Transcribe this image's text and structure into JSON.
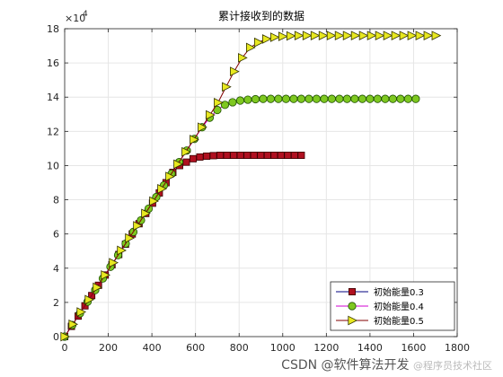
{
  "chart_data": {
    "type": "line",
    "title": "累计接收到的数据",
    "xlabel": "",
    "ylabel": "",
    "y_exponent_label": "×10",
    "y_exponent_power": "4",
    "xlim": [
      0,
      1800
    ],
    "ylim": [
      0,
      18
    ],
    "xticks": [
      0,
      200,
      400,
      600,
      800,
      1000,
      1200,
      1400,
      1600,
      1800
    ],
    "yticks": [
      0,
      2,
      4,
      6,
      8,
      10,
      12,
      14,
      16,
      18
    ],
    "grid": true,
    "legend_position": "bottom-right",
    "series": [
      {
        "name": "初始能量0.3",
        "color": "#000080",
        "marker": "square",
        "marker_fill": "#b01020",
        "x": [
          0,
          31,
          62,
          93,
          124,
          155,
          186,
          217,
          248,
          279,
          310,
          341,
          372,
          403,
          434,
          465,
          496,
          527,
          558,
          589,
          620,
          651,
          682,
          713,
          744,
          775,
          806,
          837,
          868,
          899,
          930,
          961,
          992,
          1023,
          1054,
          1085
        ],
        "y": [
          0,
          0.6,
          1.2,
          1.8,
          2.4,
          3.0,
          3.6,
          4.2,
          4.8,
          5.4,
          6.0,
          6.6,
          7.2,
          7.8,
          8.4,
          9.0,
          9.6,
          10.0,
          10.2,
          10.4,
          10.5,
          10.55,
          10.58,
          10.6,
          10.6,
          10.6,
          10.6,
          10.6,
          10.6,
          10.6,
          10.6,
          10.6,
          10.6,
          10.6,
          10.6,
          10.6
        ]
      },
      {
        "name": "初始能量0.4",
        "color": "#d000d0",
        "marker": "circle",
        "marker_fill": "#7ec820",
        "x": [
          0,
          35,
          70,
          105,
          140,
          175,
          210,
          245,
          280,
          315,
          350,
          385,
          420,
          455,
          490,
          525,
          560,
          595,
          630,
          665,
          700,
          735,
          770,
          805,
          840,
          875,
          910,
          945,
          980,
          1015,
          1050,
          1085,
          1120,
          1155,
          1190,
          1225,
          1260,
          1295,
          1330,
          1365,
          1400,
          1435,
          1470,
          1505,
          1540,
          1575,
          1610
        ],
        "y": [
          0,
          0.68,
          1.36,
          2.04,
          2.72,
          3.4,
          4.08,
          4.76,
          5.44,
          6.12,
          6.8,
          7.48,
          8.16,
          8.84,
          9.52,
          10.2,
          10.88,
          11.56,
          12.24,
          12.8,
          13.25,
          13.55,
          13.7,
          13.8,
          13.85,
          13.88,
          13.9,
          13.9,
          13.9,
          13.9,
          13.9,
          13.9,
          13.9,
          13.9,
          13.9,
          13.9,
          13.9,
          13.9,
          13.9,
          13.9,
          13.9,
          13.9,
          13.9,
          13.9,
          13.9,
          13.9,
          13.9
        ]
      },
      {
        "name": "初始能量0.5",
        "color": "#800000",
        "marker": "triangle-right",
        "marker_fill": "#e8e820",
        "x": [
          0,
          37,
          74,
          111,
          148,
          185,
          222,
          259,
          296,
          333,
          370,
          407,
          444,
          481,
          518,
          555,
          592,
          629,
          666,
          703,
          740,
          777,
          814,
          851,
          888,
          925,
          962,
          999,
          1036,
          1073,
          1110,
          1147,
          1184,
          1221,
          1258,
          1295,
          1332,
          1369,
          1406,
          1443,
          1480,
          1517,
          1554,
          1591,
          1628,
          1665,
          1702
        ],
        "y": [
          0,
          0.72,
          1.44,
          2.16,
          2.88,
          3.6,
          4.32,
          5.04,
          5.76,
          6.48,
          7.2,
          7.92,
          8.64,
          9.36,
          10.08,
          10.8,
          11.52,
          12.24,
          12.96,
          13.68,
          14.6,
          15.5,
          16.3,
          16.9,
          17.2,
          17.4,
          17.5,
          17.55,
          17.58,
          17.6,
          17.6,
          17.6,
          17.6,
          17.6,
          17.6,
          17.6,
          17.6,
          17.6,
          17.6,
          17.6,
          17.6,
          17.6,
          17.6,
          17.6,
          17.6,
          17.6,
          17.6
        ]
      }
    ]
  },
  "watermark": {
    "main": "CSDN @软件算法开发",
    "faint": "@程序员技术社区"
  }
}
